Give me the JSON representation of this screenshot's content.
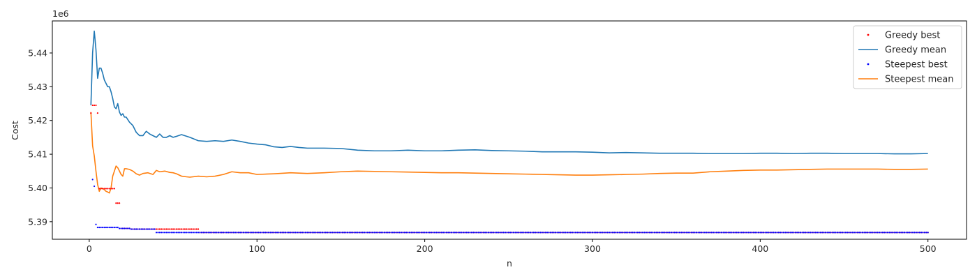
{
  "chart_data": {
    "type": "line",
    "title": "",
    "xlabel": "n",
    "ylabel": "Cost",
    "y_offset_label": "1e6",
    "y_scale_factor": 1000000,
    "xlim": [
      -22,
      523
    ],
    "ylim": [
      5.3848,
      5.4495
    ],
    "x_ticks": [
      0,
      100,
      200,
      300,
      400,
      500
    ],
    "y_ticks": [
      5.39,
      5.4,
      5.41,
      5.42,
      5.43,
      5.44
    ],
    "grid": false,
    "legend_position": "top-right",
    "series": [
      {
        "name": "Greedy best",
        "style": "dots",
        "color": "#ff0000",
        "points": [
          [
            1,
            5.4222
          ],
          [
            2,
            5.4245
          ],
          [
            3,
            5.4245
          ],
          [
            4,
            5.4245
          ],
          [
            5,
            5.4222
          ],
          [
            6,
            5.3998
          ],
          [
            7,
            5.3998
          ],
          [
            8,
            5.3998
          ],
          [
            9,
            5.3998
          ],
          [
            10,
            5.3998
          ],
          [
            11,
            5.3998
          ],
          [
            12,
            5.3998
          ],
          [
            13,
            5.3998
          ],
          [
            14,
            5.3998
          ],
          [
            15,
            5.3998
          ],
          [
            16,
            5.3955
          ],
          [
            17,
            5.3955
          ],
          [
            18,
            5.3955
          ],
          [
            19,
            5.388
          ],
          [
            20,
            5.388
          ],
          [
            21,
            5.388
          ],
          [
            22,
            5.388
          ],
          [
            23,
            5.388
          ],
          [
            24,
            5.388
          ],
          [
            25,
            5.3878
          ],
          [
            26,
            5.3878
          ],
          [
            27,
            5.3878
          ],
          [
            28,
            5.3878
          ],
          [
            29,
            5.3878
          ],
          [
            30,
            5.3878
          ],
          [
            31,
            5.3878
          ],
          [
            32,
            5.3878
          ],
          [
            33,
            5.3878
          ],
          [
            34,
            5.3878
          ],
          [
            35,
            5.3878
          ],
          [
            36,
            5.3878
          ],
          [
            37,
            5.3878
          ],
          [
            38,
            5.3878
          ],
          [
            39,
            5.3878
          ],
          [
            40,
            5.3878
          ],
          [
            41,
            5.3878
          ],
          [
            42,
            5.3878
          ],
          [
            43,
            5.3878
          ],
          [
            44,
            5.3878
          ],
          [
            45,
            5.3878
          ],
          [
            46,
            5.3878
          ],
          [
            47,
            5.3878
          ],
          [
            48,
            5.3878
          ],
          [
            49,
            5.3878
          ],
          [
            50,
            5.3878
          ],
          [
            51,
            5.3878
          ],
          [
            52,
            5.3878
          ],
          [
            53,
            5.3878
          ],
          [
            54,
            5.3878
          ],
          [
            55,
            5.3878
          ],
          [
            56,
            5.3878
          ],
          [
            57,
            5.3878
          ],
          [
            58,
            5.3878
          ],
          [
            59,
            5.3878
          ],
          [
            60,
            5.3878
          ],
          [
            61,
            5.3878
          ],
          [
            62,
            5.3878
          ],
          [
            63,
            5.3878
          ],
          [
            64,
            5.3878
          ],
          [
            65,
            5.3878
          ],
          [
            66,
            5.3868
          ],
          [
            80,
            5.3868
          ],
          [
            100,
            5.3868
          ],
          [
            150,
            5.3868
          ],
          [
            200,
            5.3868
          ],
          [
            250,
            5.3868
          ],
          [
            300,
            5.3868
          ],
          [
            350,
            5.3868
          ],
          [
            400,
            5.3868
          ],
          [
            450,
            5.3868
          ],
          [
            500,
            5.3868
          ]
        ]
      },
      {
        "name": "Greedy mean",
        "style": "line",
        "color": "#1f77b4",
        "points": [
          [
            1,
            5.4245
          ],
          [
            2,
            5.44
          ],
          [
            3,
            5.4465
          ],
          [
            4,
            5.441
          ],
          [
            5,
            5.4325
          ],
          [
            6,
            5.4355
          ],
          [
            7,
            5.4355
          ],
          [
            8,
            5.434
          ],
          [
            9,
            5.432
          ],
          [
            10,
            5.431
          ],
          [
            11,
            5.43
          ],
          [
            12,
            5.43
          ],
          [
            13,
            5.4285
          ],
          [
            14,
            5.4265
          ],
          [
            15,
            5.424
          ],
          [
            16,
            5.4235
          ],
          [
            17,
            5.425
          ],
          [
            18,
            5.4225
          ],
          [
            19,
            5.4215
          ],
          [
            20,
            5.422
          ],
          [
            21,
            5.421
          ],
          [
            22,
            5.421
          ],
          [
            24,
            5.4195
          ],
          [
            26,
            5.4185
          ],
          [
            28,
            5.4165
          ],
          [
            30,
            5.4155
          ],
          [
            32,
            5.4155
          ],
          [
            34,
            5.4168
          ],
          [
            36,
            5.416
          ],
          [
            38,
            5.4155
          ],
          [
            40,
            5.415
          ],
          [
            42,
            5.416
          ],
          [
            44,
            5.415
          ],
          [
            46,
            5.415
          ],
          [
            48,
            5.4155
          ],
          [
            50,
            5.415
          ],
          [
            52,
            5.4153
          ],
          [
            55,
            5.4158
          ],
          [
            60,
            5.415
          ],
          [
            65,
            5.414
          ],
          [
            70,
            5.4138
          ],
          [
            75,
            5.414
          ],
          [
            80,
            5.4138
          ],
          [
            85,
            5.4142
          ],
          [
            90,
            5.4138
          ],
          [
            95,
            5.4133
          ],
          [
            100,
            5.413
          ],
          [
            105,
            5.4128
          ],
          [
            110,
            5.4122
          ],
          [
            115,
            5.412
          ],
          [
            120,
            5.4123
          ],
          [
            125,
            5.412
          ],
          [
            130,
            5.4118
          ],
          [
            140,
            5.4118
          ],
          [
            150,
            5.4117
          ],
          [
            160,
            5.4112
          ],
          [
            170,
            5.411
          ],
          [
            180,
            5.411
          ],
          [
            190,
            5.4112
          ],
          [
            200,
            5.411
          ],
          [
            210,
            5.411
          ],
          [
            220,
            5.4112
          ],
          [
            230,
            5.4113
          ],
          [
            240,
            5.4111
          ],
          [
            250,
            5.411
          ],
          [
            260,
            5.4109
          ],
          [
            270,
            5.4107
          ],
          [
            280,
            5.4107
          ],
          [
            290,
            5.4107
          ],
          [
            300,
            5.4106
          ],
          [
            310,
            5.4104
          ],
          [
            320,
            5.4105
          ],
          [
            330,
            5.4104
          ],
          [
            340,
            5.4103
          ],
          [
            350,
            5.4103
          ],
          [
            360,
            5.4103
          ],
          [
            370,
            5.4102
          ],
          [
            380,
            5.4102
          ],
          [
            390,
            5.4102
          ],
          [
            400,
            5.4103
          ],
          [
            410,
            5.4103
          ],
          [
            420,
            5.4102
          ],
          [
            430,
            5.4103
          ],
          [
            440,
            5.4103
          ],
          [
            450,
            5.4102
          ],
          [
            460,
            5.4102
          ],
          [
            470,
            5.4102
          ],
          [
            480,
            5.4101
          ],
          [
            490,
            5.4101
          ],
          [
            500,
            5.4102
          ]
        ]
      },
      {
        "name": "Steepest best",
        "style": "dots",
        "color": "#0000ff",
        "points": [
          [
            2,
            5.4025
          ],
          [
            3,
            5.4005
          ],
          [
            4,
            5.3892
          ],
          [
            5,
            5.3883
          ],
          [
            6,
            5.3883
          ],
          [
            7,
            5.3883
          ],
          [
            8,
            5.3883
          ],
          [
            9,
            5.3883
          ],
          [
            10,
            5.3883
          ],
          [
            11,
            5.3883
          ],
          [
            12,
            5.3883
          ],
          [
            13,
            5.3883
          ],
          [
            14,
            5.3883
          ],
          [
            15,
            5.3883
          ],
          [
            16,
            5.3883
          ],
          [
            17,
            5.3883
          ],
          [
            18,
            5.388
          ],
          [
            19,
            5.388
          ],
          [
            20,
            5.388
          ],
          [
            21,
            5.388
          ],
          [
            22,
            5.388
          ],
          [
            23,
            5.388
          ],
          [
            24,
            5.388
          ],
          [
            25,
            5.3878
          ],
          [
            26,
            5.3878
          ],
          [
            27,
            5.3878
          ],
          [
            28,
            5.3878
          ],
          [
            29,
            5.3878
          ],
          [
            30,
            5.3878
          ],
          [
            31,
            5.3878
          ],
          [
            32,
            5.3878
          ],
          [
            33,
            5.3878
          ],
          [
            34,
            5.3878
          ],
          [
            35,
            5.3878
          ],
          [
            36,
            5.3878
          ],
          [
            37,
            5.3878
          ],
          [
            38,
            5.3878
          ],
          [
            39,
            5.3878
          ],
          [
            40,
            5.3868
          ],
          [
            50,
            5.3868
          ],
          [
            60,
            5.3868
          ],
          [
            70,
            5.3868
          ],
          [
            80,
            5.3868
          ],
          [
            90,
            5.3868
          ],
          [
            100,
            5.3868
          ],
          [
            125,
            5.3868
          ],
          [
            150,
            5.3868
          ],
          [
            175,
            5.3868
          ],
          [
            200,
            5.3868
          ],
          [
            225,
            5.3868
          ],
          [
            250,
            5.3868
          ],
          [
            275,
            5.3868
          ],
          [
            300,
            5.3868
          ],
          [
            325,
            5.3868
          ],
          [
            350,
            5.3868
          ],
          [
            375,
            5.3868
          ],
          [
            400,
            5.3868
          ],
          [
            425,
            5.3868
          ],
          [
            450,
            5.3868
          ],
          [
            475,
            5.3868
          ],
          [
            500,
            5.3868
          ]
        ]
      },
      {
        "name": "Steepest mean",
        "style": "line",
        "color": "#ff7f0e",
        "points": [
          [
            1,
            5.4225
          ],
          [
            2,
            5.4125
          ],
          [
            3,
            5.4095
          ],
          [
            4,
            5.405
          ],
          [
            5,
            5.401
          ],
          [
            6,
            5.399
          ],
          [
            7,
            5.4
          ],
          [
            8,
            5.3998
          ],
          [
            9,
            5.3995
          ],
          [
            10,
            5.399
          ],
          [
            11,
            5.3988
          ],
          [
            12,
            5.3985
          ],
          [
            13,
            5.4
          ],
          [
            14,
            5.4035
          ],
          [
            15,
            5.405
          ],
          [
            16,
            5.4065
          ],
          [
            17,
            5.406
          ],
          [
            18,
            5.405
          ],
          [
            19,
            5.404
          ],
          [
            20,
            5.4035
          ],
          [
            21,
            5.4057
          ],
          [
            22,
            5.4057
          ],
          [
            24,
            5.4055
          ],
          [
            26,
            5.405
          ],
          [
            28,
            5.4042
          ],
          [
            30,
            5.4038
          ],
          [
            32,
            5.4043
          ],
          [
            35,
            5.4045
          ],
          [
            38,
            5.404
          ],
          [
            40,
            5.4052
          ],
          [
            42,
            5.4048
          ],
          [
            45,
            5.405
          ],
          [
            48,
            5.4046
          ],
          [
            50,
            5.4045
          ],
          [
            52,
            5.4042
          ],
          [
            55,
            5.4035
          ],
          [
            58,
            5.4033
          ],
          [
            60,
            5.4032
          ],
          [
            65,
            5.4035
          ],
          [
            70,
            5.4033
          ],
          [
            75,
            5.4035
          ],
          [
            80,
            5.404
          ],
          [
            85,
            5.4048
          ],
          [
            90,
            5.4045
          ],
          [
            95,
            5.4045
          ],
          [
            100,
            5.404
          ],
          [
            110,
            5.4042
          ],
          [
            120,
            5.4045
          ],
          [
            130,
            5.4043
          ],
          [
            140,
            5.4045
          ],
          [
            150,
            5.4048
          ],
          [
            160,
            5.405
          ],
          [
            170,
            5.4049
          ],
          [
            180,
            5.4048
          ],
          [
            190,
            5.4047
          ],
          [
            200,
            5.4046
          ],
          [
            210,
            5.4045
          ],
          [
            220,
            5.4045
          ],
          [
            230,
            5.4044
          ],
          [
            240,
            5.4043
          ],
          [
            250,
            5.4042
          ],
          [
            260,
            5.4041
          ],
          [
            270,
            5.404
          ],
          [
            280,
            5.4039
          ],
          [
            290,
            5.4038
          ],
          [
            300,
            5.4038
          ],
          [
            310,
            5.4039
          ],
          [
            320,
            5.404
          ],
          [
            330,
            5.4041
          ],
          [
            340,
            5.4043
          ],
          [
            350,
            5.4044
          ],
          [
            360,
            5.4044
          ],
          [
            370,
            5.4048
          ],
          [
            380,
            5.405
          ],
          [
            390,
            5.4052
          ],
          [
            400,
            5.4053
          ],
          [
            410,
            5.4053
          ],
          [
            420,
            5.4054
          ],
          [
            430,
            5.4055
          ],
          [
            440,
            5.4056
          ],
          [
            450,
            5.4056
          ],
          [
            460,
            5.4056
          ],
          [
            470,
            5.4056
          ],
          [
            480,
            5.4055
          ],
          [
            490,
            5.4055
          ],
          [
            500,
            5.4056
          ]
        ]
      }
    ]
  }
}
